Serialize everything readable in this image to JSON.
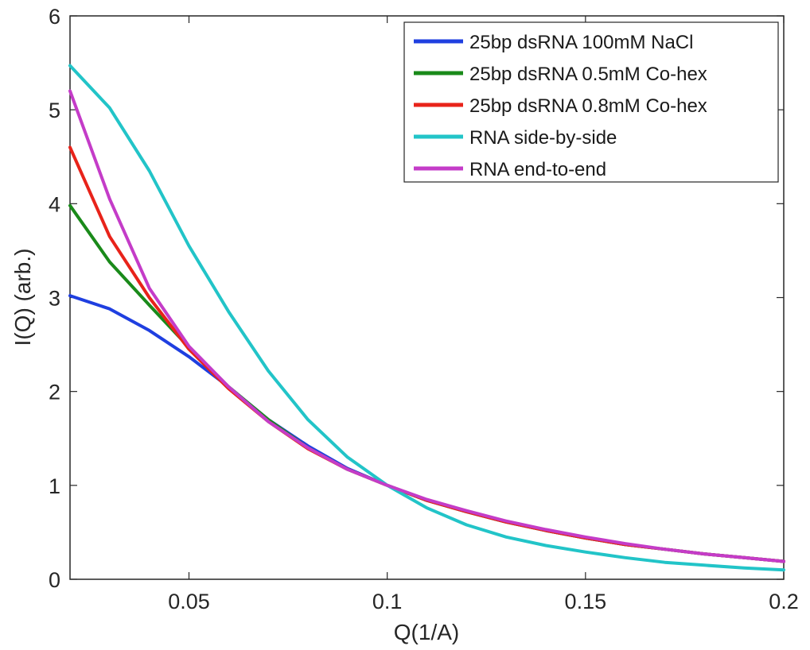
{
  "chart_data": {
    "type": "line",
    "title": "",
    "xlabel": "Q(1/A)",
    "ylabel": "I(Q) (arb.)",
    "xlim": [
      0.02,
      0.2
    ],
    "ylim": [
      0,
      6
    ],
    "x_ticks": [
      0.05,
      0.1,
      0.15,
      0.2
    ],
    "x_tick_labels": [
      "0.05",
      "0.1",
      "0.15",
      "0.2"
    ],
    "y_ticks": [
      0,
      1,
      2,
      3,
      4,
      5,
      6
    ],
    "y_tick_labels": [
      "0",
      "1",
      "2",
      "3",
      "4",
      "5",
      "6"
    ],
    "grid": false,
    "legend_position": "top-right",
    "x": [
      0.02,
      0.03,
      0.04,
      0.05,
      0.06,
      0.07,
      0.08,
      0.09,
      0.1,
      0.11,
      0.12,
      0.13,
      0.14,
      0.15,
      0.16,
      0.17,
      0.18,
      0.19,
      0.2
    ],
    "series": [
      {
        "name": "25bp dsRNA 100mM NaCl",
        "color": "#1f3fe0",
        "values": [
          3.02,
          2.88,
          2.65,
          2.37,
          2.05,
          1.7,
          1.42,
          1.18,
          1.0,
          0.84,
          0.72,
          0.61,
          0.52,
          0.44,
          0.37,
          0.32,
          0.27,
          0.23,
          0.19
        ]
      },
      {
        "name": "25bp dsRNA 0.5mM Co-hex",
        "color": "#1a8a1a",
        "values": [
          3.98,
          3.38,
          2.92,
          2.47,
          2.05,
          1.7,
          1.4,
          1.17,
          1.0,
          0.84,
          0.72,
          0.61,
          0.52,
          0.44,
          0.37,
          0.32,
          0.27,
          0.23,
          0.19
        ]
      },
      {
        "name": "25bp dsRNA 0.8mM Co-hex",
        "color": "#e8231a",
        "values": [
          4.6,
          3.65,
          3.0,
          2.45,
          2.03,
          1.68,
          1.39,
          1.17,
          1.0,
          0.84,
          0.72,
          0.61,
          0.52,
          0.44,
          0.37,
          0.32,
          0.27,
          0.23,
          0.19
        ]
      },
      {
        "name": "RNA side-by-side",
        "color": "#22c4c8",
        "values": [
          5.47,
          5.02,
          4.35,
          3.55,
          2.85,
          2.22,
          1.7,
          1.3,
          1.0,
          0.76,
          0.58,
          0.45,
          0.36,
          0.29,
          0.23,
          0.18,
          0.15,
          0.12,
          0.1
        ]
      },
      {
        "name": "RNA end-to-end",
        "color": "#c43cc8",
        "values": [
          5.2,
          4.05,
          3.1,
          2.48,
          2.05,
          1.68,
          1.4,
          1.17,
          1.0,
          0.85,
          0.73,
          0.62,
          0.53,
          0.45,
          0.38,
          0.32,
          0.27,
          0.23,
          0.19
        ]
      }
    ]
  }
}
